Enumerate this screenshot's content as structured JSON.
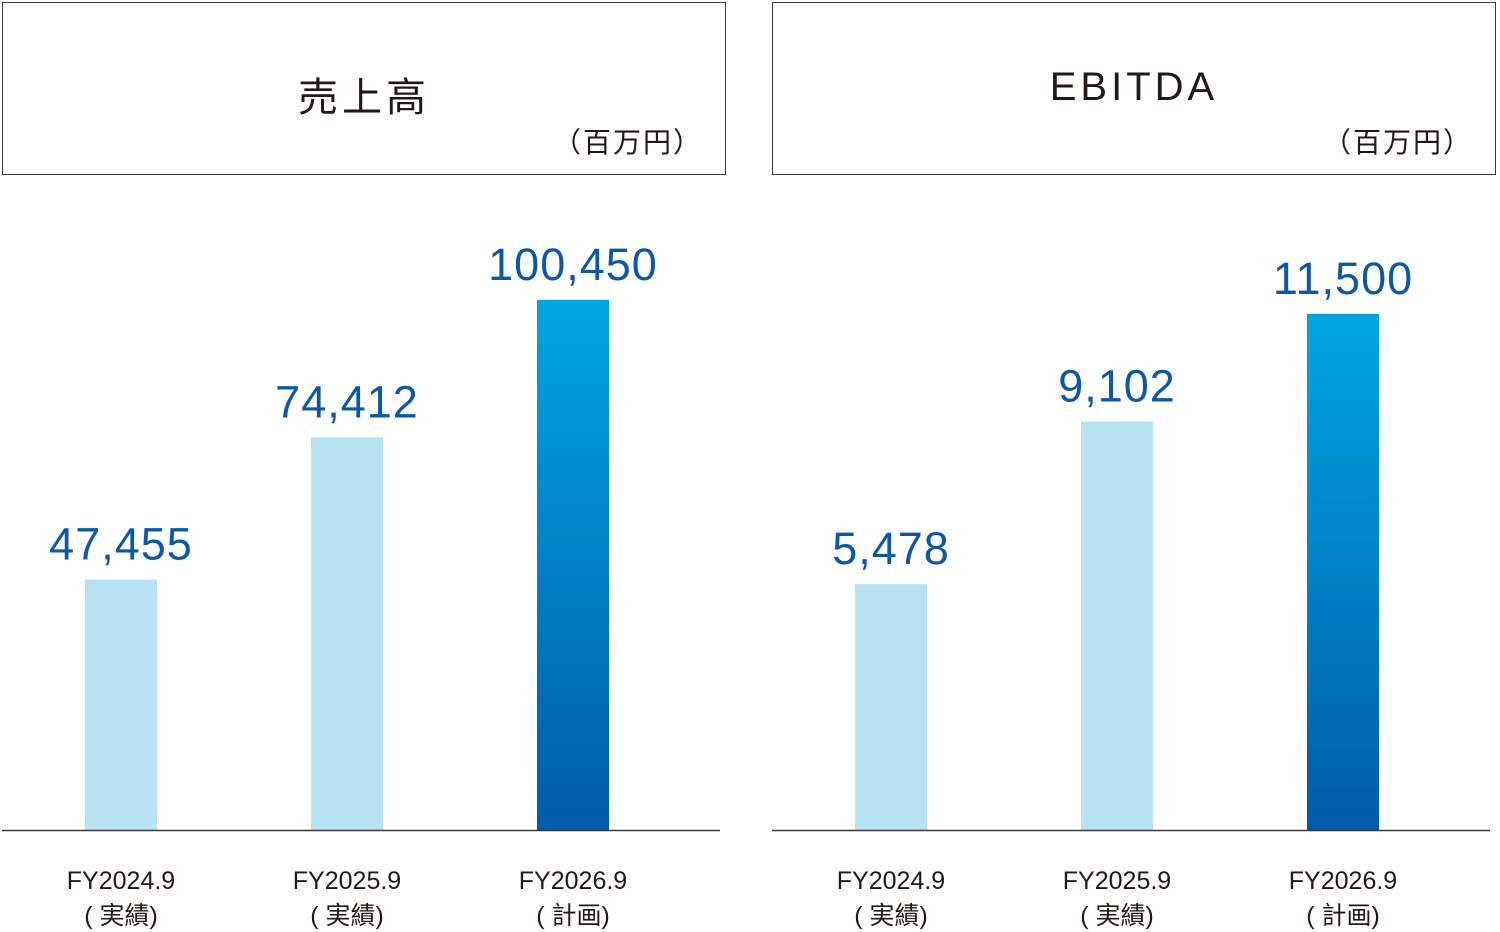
{
  "colors": {
    "bar_actual": "#b6e2f1",
    "bar_plan_top": "#00a6e0",
    "bar_plan_bottom": "#005bac",
    "value_label": "#0b58a8",
    "axis": "#3e3a39"
  },
  "chart_data": [
    {
      "type": "bar",
      "title": "売上高",
      "unit": "（百万円）",
      "categories": [
        "FY2024.9",
        "FY2025.9",
        "FY2026.9"
      ],
      "category_notes": [
        "( 実績)",
        "( 実績)",
        "( 計画)"
      ],
      "values": [
        47455,
        74412,
        100450
      ],
      "value_labels": [
        "47,455",
        "74,412",
        "100,450"
      ],
      "ylim": [
        0,
        108000
      ],
      "grid": false
    },
    {
      "type": "bar",
      "title": "EBITDA",
      "unit": "（百万円）",
      "categories": [
        "FY2024.9",
        "FY2025.9",
        "FY2026.9"
      ],
      "category_notes": [
        "( 実績)",
        "( 実績)",
        "( 計画)"
      ],
      "values": [
        5478,
        9102,
        11500
      ],
      "value_labels": [
        "5,478",
        "9,102",
        "11,500"
      ],
      "ylim": [
        0,
        12700
      ],
      "grid": false
    }
  ]
}
